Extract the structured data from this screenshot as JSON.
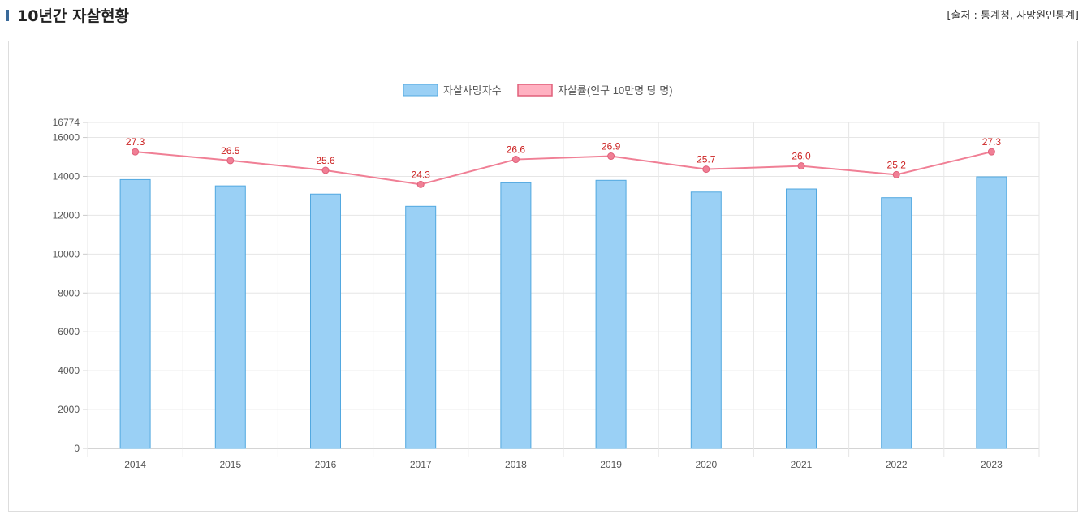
{
  "header": {
    "title": "10년간 자살현황",
    "source": "[출처 : 통계청, 사망원인통계]"
  },
  "chart_data": {
    "type": "bar+line",
    "categories": [
      "2014",
      "2015",
      "2016",
      "2017",
      "2018",
      "2019",
      "2020",
      "2021",
      "2022",
      "2023"
    ],
    "series": [
      {
        "name": "자살사망자수",
        "type": "bar",
        "axis": "left",
        "color": "#9ad0f5",
        "border": "#52a8e0",
        "values": [
          13836,
          13513,
          13092,
          12463,
          13670,
          13799,
          13195,
          13352,
          12906,
          13978
        ]
      },
      {
        "name": "자살률(인구 10만명 당 명)",
        "type": "line",
        "axis": "right-hidden",
        "color": "#f07f95",
        "label_color": "#cc2222",
        "values": [
          27.3,
          26.5,
          25.6,
          24.3,
          26.6,
          26.9,
          25.7,
          26.0,
          25.2,
          27.3
        ]
      }
    ],
    "yticks": [
      "0",
      "2000",
      "4000",
      "6000",
      "8000",
      "10000",
      "12000",
      "14000",
      "16000",
      "16774"
    ],
    "ylim": [
      0,
      16774
    ],
    "y2lim": [
      0,
      30
    ],
    "grid": true,
    "legend": "top-center"
  }
}
